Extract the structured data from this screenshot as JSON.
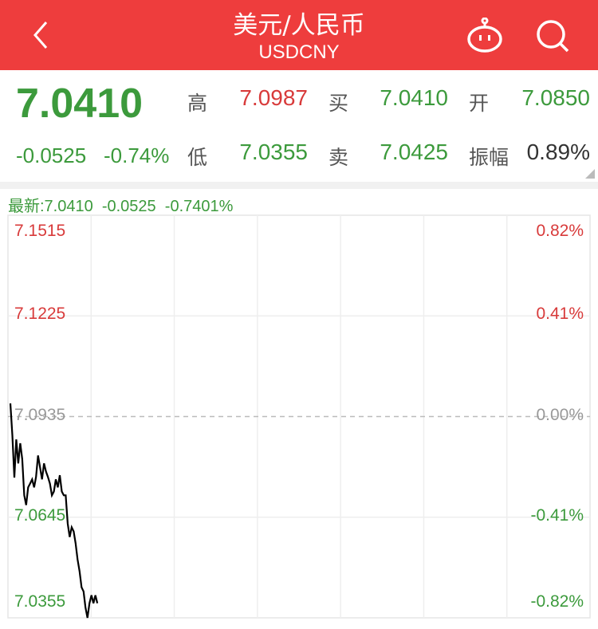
{
  "header": {
    "title": "美元/人民币",
    "subtitle": "USDCNY",
    "icons": [
      "back-chevron-icon",
      "robot-icon",
      "search-icon"
    ]
  },
  "quote": {
    "price": "7.0410",
    "change": "-0.0525",
    "change_pct": "-0.74%",
    "high_label": "高",
    "high": "7.0987",
    "low_label": "低",
    "low": "7.0355",
    "bid_label": "买",
    "bid": "7.0410",
    "ask_label": "卖",
    "ask": "7.0425",
    "open_label": "开",
    "open": "7.0850",
    "amp_label": "振幅",
    "amp": "0.89%"
  },
  "latest_line": "最新:7.0410  -0.0525  -0.7401%",
  "colors": {
    "header": "#ee3d3d",
    "up": "#d83a3a",
    "down": "#3c9a3c",
    "line": "#000000"
  },
  "chart_data": {
    "type": "line",
    "ylim": [
      7.0355,
      7.1515
    ],
    "base": 7.0935,
    "y_ticks": [
      "7.1515",
      "7.1225",
      "7.0935",
      "7.0645",
      "7.0355"
    ],
    "pct_ticks": [
      "0.82%",
      "0.41%",
      "0.00%",
      "-0.41%",
      "-0.82%"
    ],
    "values": [
      7.0973,
      7.0881,
      7.0759,
      7.0869,
      7.08,
      7.0858,
      7.0812,
      7.0708,
      7.068,
      7.0731,
      7.0742,
      7.0754,
      7.0731,
      7.0761,
      7.0823,
      7.0789,
      7.0754,
      7.08,
      7.0777,
      7.0761,
      7.0742,
      7.0708,
      7.0719,
      7.0754,
      7.0731,
      7.0766,
      7.0719,
      7.0708,
      7.0708,
      7.0627,
      7.0588,
      7.0616,
      7.0604,
      7.057,
      7.0523,
      7.0489,
      7.0443,
      7.0431,
      7.0385,
      7.0355,
      7.0397,
      7.042,
      7.0397,
      7.042,
      7.0397
    ]
  }
}
